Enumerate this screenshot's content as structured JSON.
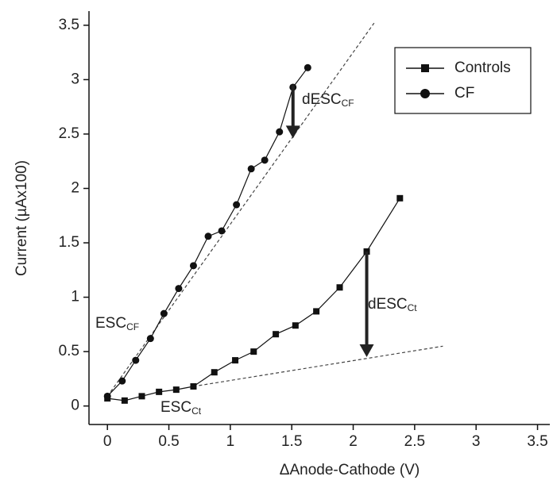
{
  "chart_data": {
    "type": "line",
    "xlabel": "ΔAnode-Cathode (V)",
    "ylabel": "Current (µAx100)",
    "xlim": [
      -0.15,
      3.6
    ],
    "ylim": [
      -0.17,
      3.63
    ],
    "xticks": [
      0,
      0.5,
      1,
      1.5,
      2,
      2.5,
      3,
      3.5
    ],
    "yticks": [
      0,
      0.5,
      1,
      1.5,
      2,
      2.5,
      3,
      3.5
    ],
    "color": "#111111",
    "legend": "upper right",
    "series": [
      {
        "name": "Controls",
        "marker": "square",
        "x": [
          0,
          0.14,
          0.28,
          0.42,
          0.56,
          0.7,
          0.87,
          1.04,
          1.19,
          1.37,
          1.53,
          1.7,
          1.89,
          2.11,
          2.38
        ],
        "values": [
          0.07,
          0.05,
          0.09,
          0.13,
          0.15,
          0.18,
          0.31,
          0.42,
          0.5,
          0.66,
          0.74,
          0.87,
          1.09,
          1.42,
          1.91
        ]
      },
      {
        "name": "CF",
        "marker": "circle",
        "x": [
          0,
          0.12,
          0.23,
          0.35,
          0.46,
          0.58,
          0.7,
          0.82,
          0.93,
          1.05,
          1.17,
          1.28,
          1.4,
          1.51,
          1.63
        ],
        "values": [
          0.09,
          0.23,
          0.42,
          0.62,
          0.85,
          1.08,
          1.29,
          1.56,
          1.61,
          1.85,
          2.18,
          2.26,
          2.52,
          2.93,
          3.11
        ]
      }
    ],
    "fit_lines": [
      {
        "x": [
          0,
          2.17
        ],
        "y": [
          0.09,
          3.52
        ]
      },
      {
        "x": [
          0.7,
          2.73
        ],
        "y": [
          0.18,
          0.55
        ]
      }
    ],
    "arrows": [
      {
        "x": 1.51,
        "y": [
          2.95,
          2.46
        ]
      },
      {
        "x": 2.11,
        "y": [
          1.42,
          0.45
        ]
      }
    ],
    "annotations": [
      {
        "text": "ESC",
        "sub": "CF"
      },
      {
        "text": "ESC",
        "sub": "Ct"
      },
      {
        "text": "dESC",
        "sub": "CF"
      },
      {
        "text": "dESC",
        "sub": "Ct"
      }
    ]
  }
}
